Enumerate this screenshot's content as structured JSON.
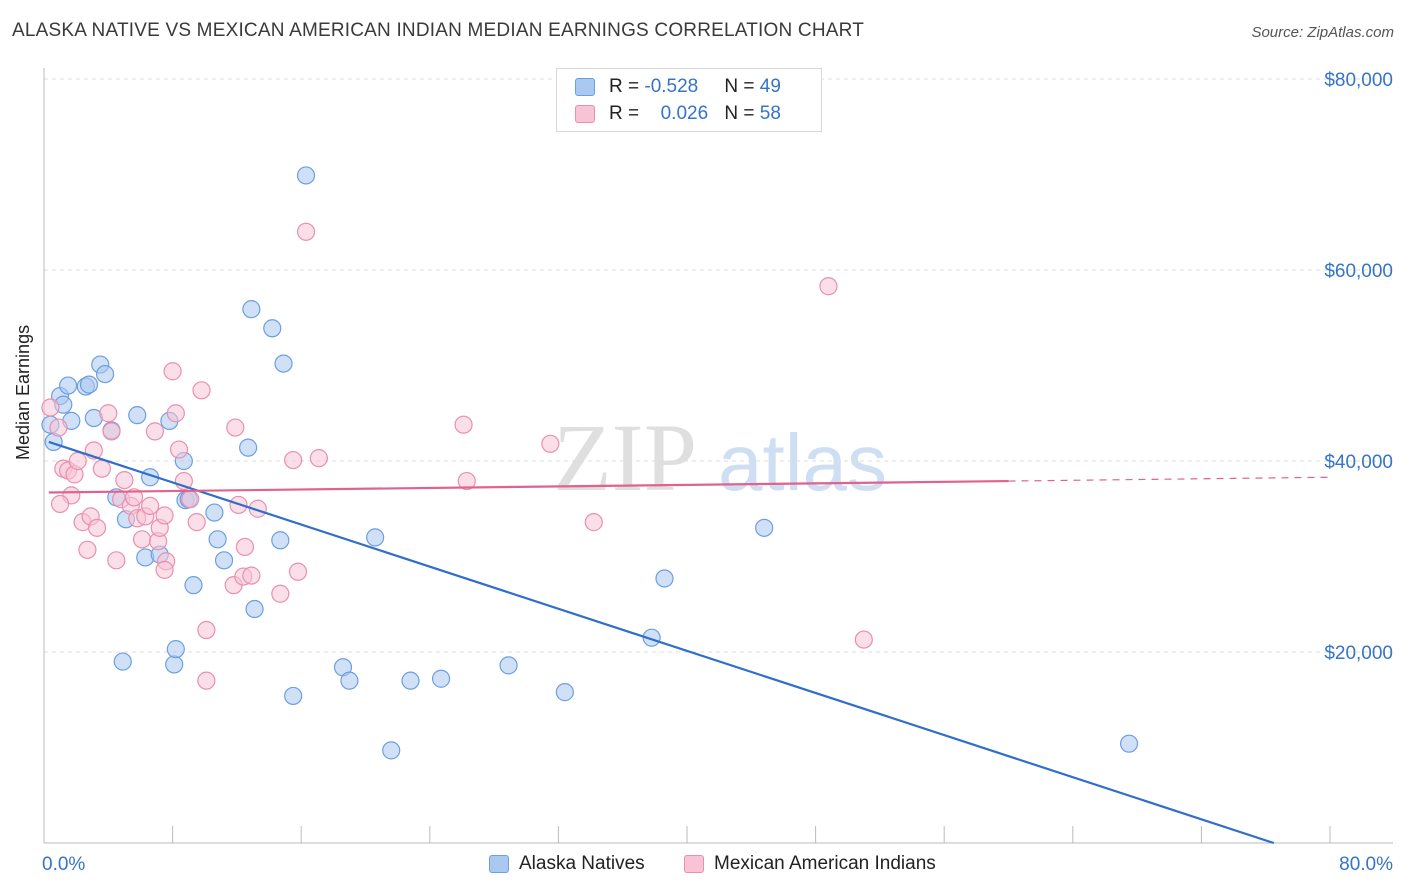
{
  "title": "ALASKA NATIVE VS MEXICAN AMERICAN INDIAN MEDIAN EARNINGS CORRELATION CHART",
  "source": "Source: ZipAtlas.com",
  "watermark": {
    "zip": "ZIP",
    "atlas": "atlas"
  },
  "legend": {
    "rows": [
      {
        "r_label": "R = ",
        "r_value": "-0.528",
        "n_label": "N = ",
        "n_value": "49",
        "color": "#a9c9f0",
        "border": "#6c9fe0"
      },
      {
        "r_label": "R = ",
        "r_value": "0.026",
        "n_label": "N = ",
        "n_value": "58",
        "color": "#f8c4d5",
        "border": "#ea8fae"
      }
    ]
  },
  "bottom_legend": [
    {
      "label": "Alaska Natives",
      "color": "#a9c9f0",
      "border": "#6c9fe0"
    },
    {
      "label": "Mexican American Indians",
      "color": "#f8c4d5",
      "border": "#ea8fae"
    }
  ],
  "chart_data": {
    "type": "scatter",
    "title": "ALASKA NATIVE VS MEXICAN AMERICAN INDIAN MEDIAN EARNINGS CORRELATION CHART",
    "xlabel": "",
    "ylabel": "Median Earnings",
    "xlim": [
      0,
      80
    ],
    "ylim": [
      0,
      80000
    ],
    "x_tick_labels": [
      "0.0%",
      "80.0%"
    ],
    "y_ticks": [
      20000,
      40000,
      60000,
      80000
    ],
    "y_tick_labels": [
      "$20,000",
      "$40,000",
      "$60,000",
      "$80,000"
    ],
    "grid": true,
    "series": [
      {
        "name": "Alaska Natives",
        "color": "#a9c9f0",
        "stroke": "#6c9fe0",
        "line_color": "#2f6fcb",
        "trend": {
          "x": [
            0.3,
            76.5
          ],
          "y": [
            42000,
            0
          ],
          "dashed_from": null
        },
        "points": [
          [
            0.4,
            43800
          ],
          [
            0.6,
            42000
          ],
          [
            1.0,
            46800
          ],
          [
            1.2,
            45900
          ],
          [
            1.5,
            47900
          ],
          [
            1.7,
            44200
          ],
          [
            2.6,
            47800
          ],
          [
            2.8,
            48000
          ],
          [
            3.1,
            44500
          ],
          [
            3.5,
            50100
          ],
          [
            3.8,
            49100
          ],
          [
            4.2,
            43200
          ],
          [
            4.5,
            36200
          ],
          [
            5.1,
            33900
          ],
          [
            5.8,
            44800
          ],
          [
            6.3,
            29900
          ],
          [
            6.6,
            38300
          ],
          [
            7.2,
            30200
          ],
          [
            7.8,
            44200
          ],
          [
            8.1,
            18700
          ],
          [
            8.2,
            20300
          ],
          [
            8.7,
            40000
          ],
          [
            8.8,
            35900
          ],
          [
            9.3,
            27000
          ],
          [
            10.6,
            34600
          ],
          [
            10.8,
            31800
          ],
          [
            11.2,
            29600
          ],
          [
            12.7,
            41400
          ],
          [
            12.9,
            55900
          ],
          [
            13.1,
            24500
          ],
          [
            14.2,
            53900
          ],
          [
            14.7,
            31700
          ],
          [
            14.9,
            50200
          ],
          [
            15.5,
            15400
          ],
          [
            16.3,
            69900
          ],
          [
            18.6,
            18400
          ],
          [
            19.0,
            17000
          ],
          [
            20.6,
            32000
          ],
          [
            21.6,
            9700
          ],
          [
            22.8,
            17000
          ],
          [
            24.7,
            17200
          ],
          [
            28.9,
            18600
          ],
          [
            32.4,
            15800
          ],
          [
            37.8,
            21500
          ],
          [
            38.6,
            27700
          ],
          [
            44.8,
            33000
          ],
          [
            67.5,
            10400
          ],
          [
            4.9,
            19000
          ],
          [
            9.0,
            36000
          ]
        ]
      },
      {
        "name": "Mexican American Indians",
        "color": "#f8c4d5",
        "stroke": "#ea8fae",
        "line_color": "#e0628d",
        "trend": {
          "x": [
            0.3,
            60.0,
            80.0
          ],
          "y": [
            36700,
            37900,
            38300
          ],
          "dashed_from": 60.0
        },
        "points": [
          [
            0.4,
            45600
          ],
          [
            0.9,
            43500
          ],
          [
            1.2,
            39200
          ],
          [
            1.5,
            39000
          ],
          [
            1.7,
            36400
          ],
          [
            1.9,
            38600
          ],
          [
            2.1,
            40000
          ],
          [
            2.4,
            33600
          ],
          [
            2.9,
            34200
          ],
          [
            3.1,
            41100
          ],
          [
            3.3,
            33000
          ],
          [
            3.6,
            39200
          ],
          [
            4.0,
            45000
          ],
          [
            4.2,
            43100
          ],
          [
            4.5,
            29600
          ],
          [
            4.8,
            36000
          ],
          [
            5.0,
            38000
          ],
          [
            5.4,
            35300
          ],
          [
            5.8,
            34000
          ],
          [
            6.1,
            31800
          ],
          [
            6.3,
            34200
          ],
          [
            6.6,
            35300
          ],
          [
            6.9,
            43100
          ],
          [
            7.1,
            31600
          ],
          [
            7.2,
            33000
          ],
          [
            7.5,
            34300
          ],
          [
            7.6,
            29500
          ],
          [
            8.0,
            49400
          ],
          [
            8.2,
            45000
          ],
          [
            8.4,
            41200
          ],
          [
            8.7,
            37900
          ],
          [
            9.1,
            36000
          ],
          [
            9.5,
            33600
          ],
          [
            9.8,
            47400
          ],
          [
            10.1,
            22300
          ],
          [
            10.1,
            17000
          ],
          [
            11.8,
            27000
          ],
          [
            11.9,
            43500
          ],
          [
            12.1,
            35400
          ],
          [
            12.4,
            27900
          ],
          [
            12.5,
            31000
          ],
          [
            12.9,
            28000
          ],
          [
            13.3,
            35000
          ],
          [
            14.7,
            26100
          ],
          [
            15.5,
            40100
          ],
          [
            15.8,
            28400
          ],
          [
            16.3,
            64000
          ],
          [
            17.1,
            40300
          ],
          [
            26.1,
            43800
          ],
          [
            26.3,
            37900
          ],
          [
            31.5,
            41800
          ],
          [
            34.2,
            33600
          ],
          [
            48.8,
            58300
          ],
          [
            51.0,
            21300
          ],
          [
            7.5,
            28600
          ],
          [
            5.6,
            36200
          ],
          [
            1.0,
            35500
          ],
          [
            2.7,
            30700
          ]
        ]
      }
    ]
  }
}
